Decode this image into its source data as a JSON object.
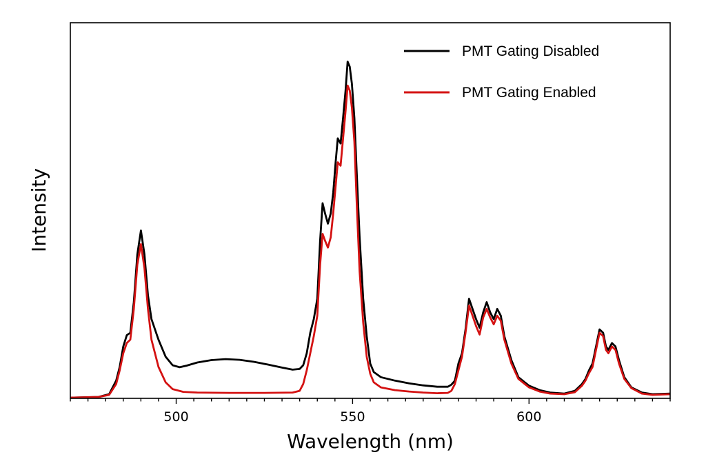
{
  "chart_data": {
    "type": "line",
    "title": "",
    "xlabel": "Wavelength (nm)",
    "ylabel": "Intensity",
    "xlim": [
      470,
      640
    ],
    "ylim": [
      0,
      1
    ],
    "x_ticks": [
      500,
      550,
      600
    ],
    "x_minor_step": 5,
    "y_ticks_shown": false,
    "grid": false,
    "legend": "top-right",
    "series": [
      {
        "name": "PMT Gating Disabled",
        "color": "#000000",
        "points": [
          [
            470,
            0.0
          ],
          [
            478,
            0.002
          ],
          [
            481,
            0.01
          ],
          [
            483,
            0.05
          ],
          [
            484,
            0.09
          ],
          [
            485,
            0.15
          ],
          [
            486,
            0.183
          ],
          [
            487,
            0.19
          ],
          [
            488,
            0.28
          ],
          [
            489,
            0.42
          ],
          [
            490,
            0.49
          ],
          [
            491,
            0.42
          ],
          [
            492,
            0.3
          ],
          [
            493,
            0.23
          ],
          [
            495,
            0.17
          ],
          [
            497,
            0.12
          ],
          [
            499,
            0.095
          ],
          [
            501,
            0.089
          ],
          [
            503,
            0.094
          ],
          [
            506,
            0.103
          ],
          [
            510,
            0.11
          ],
          [
            514,
            0.113
          ],
          [
            518,
            0.111
          ],
          [
            522,
            0.105
          ],
          [
            526,
            0.097
          ],
          [
            530,
            0.088
          ],
          [
            533,
            0.082
          ],
          [
            535,
            0.084
          ],
          [
            536,
            0.095
          ],
          [
            537,
            0.13
          ],
          [
            538,
            0.19
          ],
          [
            539,
            0.23
          ],
          [
            540,
            0.29
          ],
          [
            540.8,
            0.46
          ],
          [
            541.5,
            0.57
          ],
          [
            542.2,
            0.54
          ],
          [
            543,
            0.51
          ],
          [
            543.8,
            0.54
          ],
          [
            544.5,
            0.6
          ],
          [
            545.2,
            0.69
          ],
          [
            545.8,
            0.76
          ],
          [
            546.6,
            0.745
          ],
          [
            547.3,
            0.82
          ],
          [
            548,
            0.9
          ],
          [
            548.6,
            0.985
          ],
          [
            549.2,
            0.97
          ],
          [
            549.8,
            0.92
          ],
          [
            550.5,
            0.82
          ],
          [
            551.2,
            0.65
          ],
          [
            552,
            0.47
          ],
          [
            553,
            0.29
          ],
          [
            554,
            0.18
          ],
          [
            555,
            0.1
          ],
          [
            556,
            0.075
          ],
          [
            558,
            0.06
          ],
          [
            562,
            0.05
          ],
          [
            566,
            0.042
          ],
          [
            570,
            0.036
          ],
          [
            574,
            0.032
          ],
          [
            577,
            0.032
          ],
          [
            578,
            0.038
          ],
          [
            579,
            0.05
          ],
          [
            580,
            0.1
          ],
          [
            581,
            0.13
          ],
          [
            582,
            0.2
          ],
          [
            583,
            0.29
          ],
          [
            584,
            0.26
          ],
          [
            585,
            0.23
          ],
          [
            586,
            0.205
          ],
          [
            587,
            0.25
          ],
          [
            588,
            0.28
          ],
          [
            589,
            0.25
          ],
          [
            590,
            0.23
          ],
          [
            591,
            0.26
          ],
          [
            592,
            0.24
          ],
          [
            593,
            0.18
          ],
          [
            595,
            0.11
          ],
          [
            597,
            0.06
          ],
          [
            600,
            0.035
          ],
          [
            603,
            0.022
          ],
          [
            606,
            0.015
          ],
          [
            610,
            0.012
          ],
          [
            613,
            0.02
          ],
          [
            615,
            0.04
          ],
          [
            616,
            0.055
          ],
          [
            617,
            0.08
          ],
          [
            618,
            0.1
          ],
          [
            619,
            0.15
          ],
          [
            620,
            0.2
          ],
          [
            621,
            0.19
          ],
          [
            621.8,
            0.15
          ],
          [
            622.5,
            0.14
          ],
          [
            623.5,
            0.16
          ],
          [
            624.5,
            0.15
          ],
          [
            625.5,
            0.11
          ],
          [
            627,
            0.06
          ],
          [
            629,
            0.03
          ],
          [
            632,
            0.015
          ],
          [
            635,
            0.01
          ],
          [
            640,
            0.012
          ]
        ]
      },
      {
        "name": "PMT Gating Enabled",
        "color": "#d41212",
        "points": [
          [
            470,
            0.0
          ],
          [
            478,
            0.002
          ],
          [
            481,
            0.008
          ],
          [
            483,
            0.04
          ],
          [
            484,
            0.08
          ],
          [
            485,
            0.13
          ],
          [
            486,
            0.16
          ],
          [
            487,
            0.17
          ],
          [
            488,
            0.26
          ],
          [
            489,
            0.39
          ],
          [
            490,
            0.45
          ],
          [
            491,
            0.38
          ],
          [
            492,
            0.26
          ],
          [
            493,
            0.17
          ],
          [
            495,
            0.09
          ],
          [
            497,
            0.045
          ],
          [
            499,
            0.025
          ],
          [
            502,
            0.017
          ],
          [
            506,
            0.015
          ],
          [
            515,
            0.014
          ],
          [
            525,
            0.014
          ],
          [
            533,
            0.015
          ],
          [
            535,
            0.02
          ],
          [
            536,
            0.04
          ],
          [
            537,
            0.08
          ],
          [
            538,
            0.13
          ],
          [
            539,
            0.18
          ],
          [
            540,
            0.24
          ],
          [
            540.8,
            0.39
          ],
          [
            541.5,
            0.48
          ],
          [
            542.2,
            0.46
          ],
          [
            543,
            0.44
          ],
          [
            543.8,
            0.47
          ],
          [
            544.5,
            0.54
          ],
          [
            545.2,
            0.62
          ],
          [
            545.8,
            0.69
          ],
          [
            546.6,
            0.68
          ],
          [
            547.3,
            0.76
          ],
          [
            548,
            0.84
          ],
          [
            548.6,
            0.915
          ],
          [
            549.2,
            0.9
          ],
          [
            549.8,
            0.85
          ],
          [
            550.5,
            0.75
          ],
          [
            551.2,
            0.56
          ],
          [
            552,
            0.37
          ],
          [
            553,
            0.22
          ],
          [
            554,
            0.12
          ],
          [
            555,
            0.07
          ],
          [
            556,
            0.045
          ],
          [
            558,
            0.03
          ],
          [
            562,
            0.022
          ],
          [
            566,
            0.018
          ],
          [
            570,
            0.015
          ],
          [
            574,
            0.013
          ],
          [
            577,
            0.014
          ],
          [
            578,
            0.02
          ],
          [
            579,
            0.04
          ],
          [
            580,
            0.08
          ],
          [
            581,
            0.12
          ],
          [
            582,
            0.19
          ],
          [
            583,
            0.27
          ],
          [
            584,
            0.24
          ],
          [
            585,
            0.21
          ],
          [
            586,
            0.185
          ],
          [
            587,
            0.235
          ],
          [
            588,
            0.26
          ],
          [
            589,
            0.235
          ],
          [
            590,
            0.215
          ],
          [
            591,
            0.24
          ],
          [
            592,
            0.225
          ],
          [
            593,
            0.17
          ],
          [
            595,
            0.1
          ],
          [
            597,
            0.055
          ],
          [
            600,
            0.03
          ],
          [
            603,
            0.018
          ],
          [
            606,
            0.012
          ],
          [
            610,
            0.01
          ],
          [
            613,
            0.016
          ],
          [
            615,
            0.035
          ],
          [
            616,
            0.05
          ],
          [
            617,
            0.072
          ],
          [
            618,
            0.09
          ],
          [
            619,
            0.14
          ],
          [
            620,
            0.19
          ],
          [
            621,
            0.18
          ],
          [
            621.8,
            0.14
          ],
          [
            622.5,
            0.13
          ],
          [
            623.5,
            0.15
          ],
          [
            624.5,
            0.14
          ],
          [
            625.5,
            0.1
          ],
          [
            627,
            0.055
          ],
          [
            629,
            0.028
          ],
          [
            632,
            0.012
          ],
          [
            635,
            0.008
          ],
          [
            640,
            0.01
          ]
        ]
      }
    ]
  }
}
